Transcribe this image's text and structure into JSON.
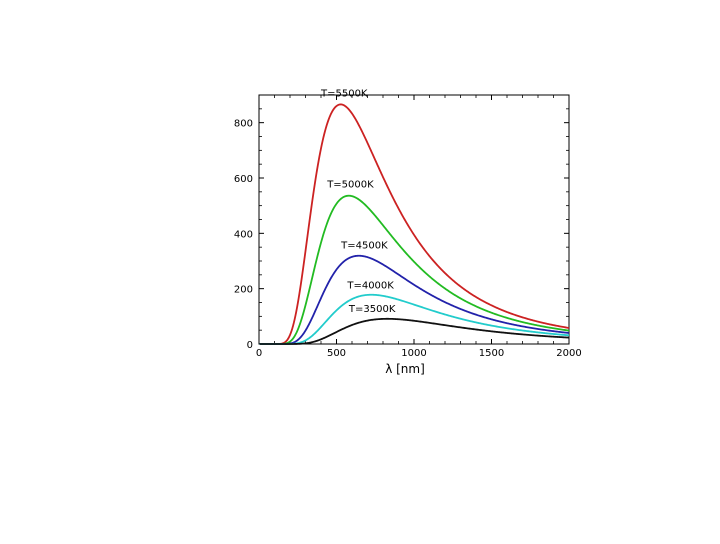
{
  "chart_data": {
    "type": "line",
    "title": "",
    "xlabel": "λ [nm]",
    "ylabel": "",
    "xlim": [
      0,
      2000
    ],
    "ylim": [
      0,
      900
    ],
    "xticks": [
      0,
      500,
      1000,
      1500,
      2000
    ],
    "yticks": [
      0,
      200,
      400,
      600,
      800
    ],
    "grid": false,
    "legend": "none",
    "series": [
      {
        "label": "T=5500K",
        "temperature": 5500,
        "color": "#cc2222",
        "peak_x": 527,
        "peak_y": 866,
        "label_x": 550,
        "label_y": 895
      },
      {
        "label": "T=5000K",
        "temperature": 5000,
        "color": "#22bb22",
        "peak_x": 580,
        "peak_y": 536,
        "label_x": 590,
        "label_y": 565
      },
      {
        "label": "T=4500K",
        "temperature": 4500,
        "color": "#2222aa",
        "peak_x": 644,
        "peak_y": 319,
        "label_x": 680,
        "label_y": 345
      },
      {
        "label": "T=4000K",
        "temperature": 4000,
        "color": "#22cccc",
        "peak_x": 725,
        "peak_y": 178,
        "label_x": 720,
        "label_y": 200
      },
      {
        "label": "T=3500K",
        "temperature": 3500,
        "color": "#111111",
        "peak_x": 828,
        "peak_y": 91,
        "label_x": 730,
        "label_y": 115
      }
    ]
  }
}
